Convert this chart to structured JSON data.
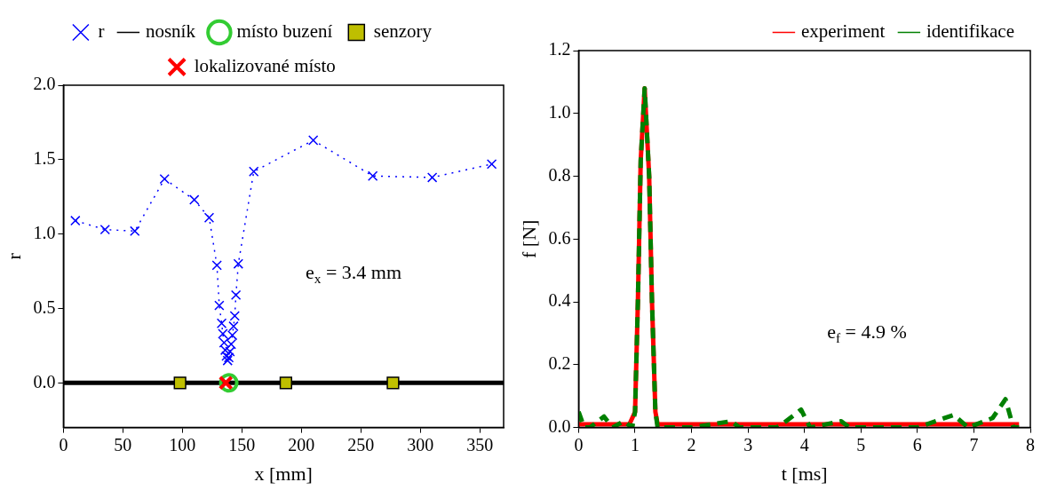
{
  "chart_data": [
    {
      "type": "scatter",
      "xlabel": "x [mm]",
      "ylabel": "r",
      "xlim": [
        0,
        370
      ],
      "ylim": [
        -0.3,
        2.0
      ],
      "xticks": [
        0,
        50,
        100,
        150,
        200,
        250,
        300,
        350
      ],
      "yticks": [
        {
          "value": 0,
          "label": "0.0"
        },
        {
          "value": 0.5,
          "label": "0.5"
        },
        {
          "value": 1,
          "label": "1.0"
        },
        {
          "value": 1.5,
          "label": "1.5"
        },
        {
          "value": 2,
          "label": "2.0"
        }
      ],
      "grid": false,
      "legend": "top",
      "annotations": [
        "e$_{x}$ = 3.4 mm"
      ],
      "series": [
        {
          "name": "r",
          "type": "line",
          "color": "#0000ff",
          "marker": "cross",
          "line_style": "dotted",
          "x": [
            10,
            35,
            60,
            85,
            110,
            122.5,
            129,
            131,
            133,
            134,
            135,
            136,
            137,
            138,
            139,
            140,
            141,
            142,
            143,
            144,
            145,
            147,
            160,
            210,
            260,
            310,
            360
          ],
          "values": [
            1.09,
            1.03,
            1.02,
            1.37,
            1.23,
            1.11,
            0.79,
            0.52,
            0.4,
            0.33,
            0.27,
            0.22,
            0.18,
            0.15,
            0.17,
            0.21,
            0.26,
            0.32,
            0.38,
            0.45,
            0.59,
            0.8,
            1.42,
            1.63,
            1.39,
            1.38,
            1.47
          ]
        },
        {
          "name": "nosník",
          "type": "line",
          "color": "#000000",
          "marker": "none",
          "line_style": "solid",
          "x": [
            0,
            370
          ],
          "values": [
            0,
            0
          ]
        },
        {
          "name": "místo buzení",
          "color": "#33cc33",
          "marker": "circle",
          "x": [
            139
          ],
          "values": [
            0
          ]
        },
        {
          "name": "senzory",
          "color": "#bfbf00",
          "marker": "square",
          "x": [
            98,
            187,
            277
          ],
          "values": [
            0,
            0,
            0
          ]
        },
        {
          "name": "lokalizované místo",
          "color": "#ff0000",
          "marker": "cross",
          "x": [
            136.5
          ],
          "values": [
            0
          ]
        }
      ]
    },
    {
      "type": "line",
      "xlabel": "t [ms]",
      "ylabel": "f [N]",
      "xlim": [
        0,
        8
      ],
      "ylim": [
        0,
        1.2
      ],
      "xticks": [
        0,
        1,
        2,
        3,
        4,
        5,
        6,
        7,
        8
      ],
      "yticks": [
        {
          "value": 0,
          "label": "0.0"
        },
        {
          "value": 0.2,
          "label": "0.2"
        },
        {
          "value": 0.4,
          "label": "0.4"
        },
        {
          "value": 0.6,
          "label": "0.6"
        },
        {
          "value": 0.8,
          "label": "0.8"
        },
        {
          "value": 1,
          "label": "1.0"
        },
        {
          "value": 1.2,
          "label": "1.2"
        }
      ],
      "grid": false,
      "legend": "top right",
      "annotations": [
        "e$_{f}$ = 4.9 %"
      ],
      "series": [
        {
          "name": "experiment",
          "color": "#ff0000",
          "marker": "none",
          "line_style": "solid",
          "x": [
            0,
            0.9,
            1.0,
            1.05,
            1.1,
            1.17,
            1.25,
            1.3,
            1.36,
            1.4,
            3,
            5,
            7.8
          ],
          "values": [
            0.01,
            0.01,
            0.05,
            0.4,
            0.85,
            1.08,
            0.8,
            0.4,
            0.05,
            0.01,
            0.01,
            0.01,
            0.01
          ]
        },
        {
          "name": "identifikace",
          "color": "#008000",
          "marker": "none",
          "line_style": "dashed",
          "x": [
            0,
            0.1,
            0.2,
            0.45,
            0.6,
            0.8,
            0.95,
            1.0,
            1.05,
            1.1,
            1.17,
            1.25,
            1.3,
            1.36,
            1.4,
            2.0,
            2.7,
            2.85,
            3.5,
            3.6,
            3.94,
            4.1,
            4.65,
            4.8,
            6.0,
            6.64,
            6.9,
            7.33,
            7.56,
            7.7,
            7.8
          ],
          "values": [
            0.05,
            0.0,
            0.0,
            0.035,
            0.0,
            0.02,
            0.0,
            0.05,
            0.4,
            0.85,
            1.08,
            0.8,
            0.4,
            0.05,
            0.0,
            0.0,
            0.02,
            0.0,
            0.0,
            0.01,
            0.057,
            0.0,
            0.02,
            0.0,
            0.0,
            0.04,
            0.0,
            0.03,
            0.09,
            0.0,
            0.0
          ]
        }
      ]
    }
  ]
}
